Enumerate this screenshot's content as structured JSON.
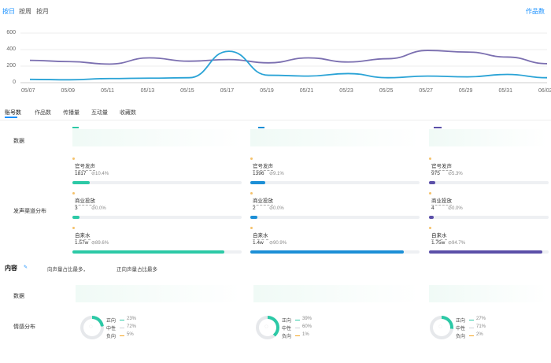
{
  "tabs": [
    "按日",
    "按周",
    "按月"
  ],
  "top_right_link": "作品数",
  "chart_data": {
    "type": "line",
    "x": [
      "05/07",
      "05/09",
      "05/11",
      "05/13",
      "05/15",
      "05/17",
      "05/19",
      "05/21",
      "05/23",
      "05/25",
      "05/27",
      "05/29",
      "05/31",
      "06/02"
    ],
    "ylim": [
      0,
      600
    ],
    "yticks": [
      "600",
      "400",
      "200",
      "0"
    ],
    "grid": true,
    "series": [
      {
        "color": "#7b6fb0",
        "values": [
          270,
          255,
          225,
          300,
          260,
          280,
          240,
          300,
          250,
          290,
          390,
          370,
          310,
          230
        ]
      },
      {
        "color": "#2aa3d6",
        "values": [
          40,
          35,
          50,
          55,
          60,
          380,
          90,
          80,
          110,
          60,
          80,
          70,
          100,
          60
        ]
      }
    ]
  },
  "sub_tabs": [
    "账号数",
    "作品数",
    "传播量",
    "互动量",
    "收藏数"
  ],
  "rows": {
    "data_label": "数据",
    "source_label": "发声渠道分布",
    "content_label": "内容",
    "content_text_a": "向声量占比最多，",
    "content_text_b": "正向声量占比最多",
    "data2_label": "数据",
    "emotion_label": "情感分布"
  },
  "colors": {
    "accent1": "#2cc9a6",
    "accent2": "#1c8fd6",
    "accent3": "#5b4fa8"
  },
  "cards": [
    {
      "title": "官号发声",
      "value": "1817",
      "pct": "10.4%",
      "color": "#2cc9a6",
      "fill": 0.1
    },
    {
      "title": "官号发声",
      "value": "1396",
      "pct": "9.1%",
      "color": "#1c8fd6",
      "fill": 0.09
    },
    {
      "title": "官号发声",
      "value": "975",
      "pct": "5.3%",
      "color": "#5b4fa8",
      "fill": 0.05
    },
    {
      "title": "商业投放",
      "value": "3",
      "pct": "0.0%",
      "color": "#2cc9a6",
      "fill": 0.0
    },
    {
      "title": "商业投放",
      "value": "2",
      "pct": "0.0%",
      "color": "#1c8fd6",
      "fill": 0.0
    },
    {
      "title": "商业投放",
      "value": "4",
      "pct": "0.0%",
      "color": "#5b4fa8",
      "fill": 0.0
    },
    {
      "title": "自来水",
      "value": "1.57w",
      "pct": "89.6%",
      "color": "#2cc9a6",
      "fill": 0.896
    },
    {
      "title": "自来水",
      "value": "1.4w",
      "pct": "90.9%",
      "color": "#1c8fd6",
      "fill": 0.909
    },
    {
      "title": "自来水",
      "value": "1.75w",
      "pct": "94.7%",
      "color": "#5b4fa8",
      "fill": 0.947
    }
  ],
  "emotion": [
    {
      "items": [
        {
          "label": "正向",
          "pct": "23%",
          "color": "#2cc9a6"
        },
        {
          "label": "中性",
          "pct": "72%",
          "color": "#cfd3d8"
        },
        {
          "label": "负向",
          "pct": "5%",
          "color": "#f5a623"
        }
      ],
      "positive": 0.23
    },
    {
      "items": [
        {
          "label": "正向",
          "pct": "39%",
          "color": "#2cc9a6"
        },
        {
          "label": "中性",
          "pct": "60%",
          "color": "#cfd3d8"
        },
        {
          "label": "负向",
          "pct": "1%",
          "color": "#f5a623"
        }
      ],
      "positive": 0.39
    },
    {
      "items": [
        {
          "label": "正向",
          "pct": "27%",
          "color": "#2cc9a6"
        },
        {
          "label": "中性",
          "pct": "71%",
          "color": "#cfd3d8"
        },
        {
          "label": "负向",
          "pct": "2%",
          "color": "#f5a623"
        }
      ],
      "positive": 0.27
    }
  ]
}
